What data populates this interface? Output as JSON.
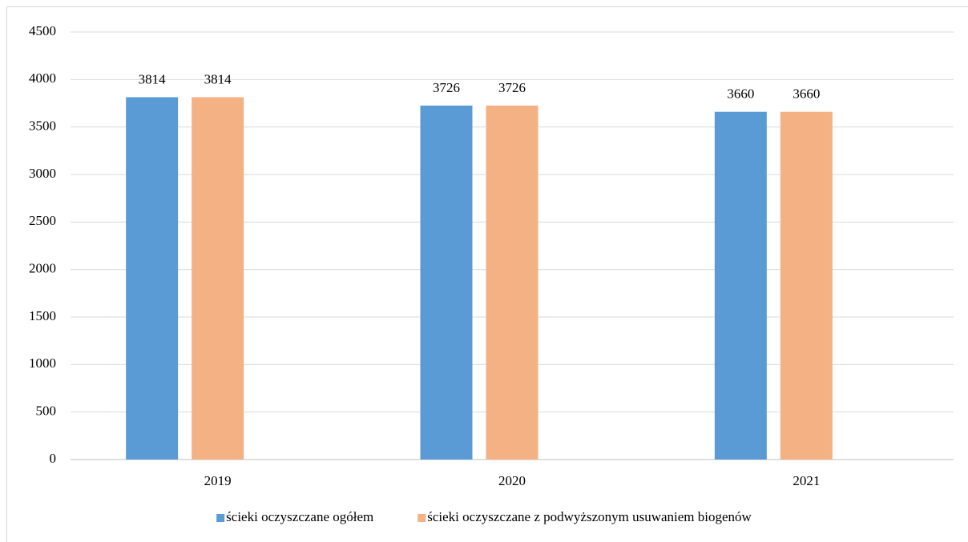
{
  "chart_data": {
    "type": "bar",
    "categories": [
      "2019",
      "2020",
      "2021"
    ],
    "series": [
      {
        "name": "ścieki oczyszczane ogółem",
        "color": "#5b9bd5",
        "values": [
          3814,
          3726,
          3660
        ]
      },
      {
        "name": "ścieki oczyszczane z podwyższonym usuwaniem biogenów",
        "color": "#f4b183",
        "values": [
          3814,
          3726,
          3660
        ]
      }
    ],
    "ylim": [
      0,
      4500
    ],
    "yticks": [
      0,
      500,
      1000,
      1500,
      2000,
      2500,
      3000,
      3500,
      4000,
      4500
    ],
    "grid": true,
    "legend": "bottom"
  }
}
